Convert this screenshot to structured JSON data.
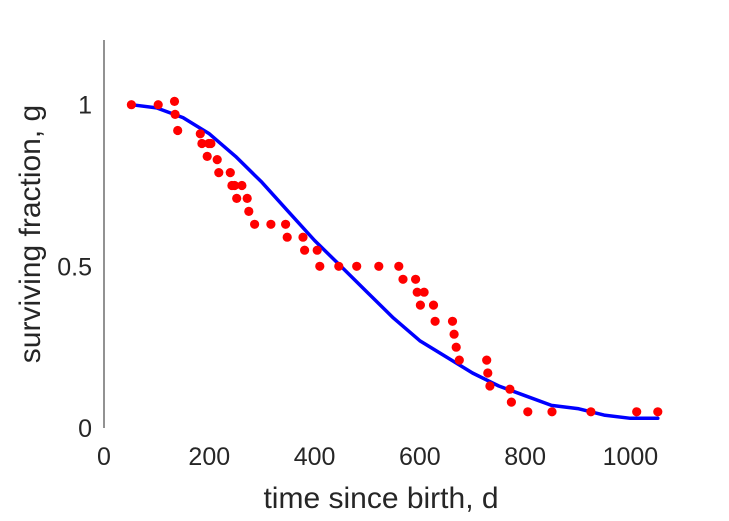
{
  "chart_data": {
    "type": "scatter",
    "xlabel": "time since birth, d",
    "ylabel": "surviving fraction, g",
    "xlim": [
      0,
      1060
    ],
    "ylim": [
      0,
      1.2
    ],
    "x_ticks": [
      0,
      200,
      400,
      600,
      800,
      1000
    ],
    "x_tick_labels": [
      "0",
      "200",
      "400",
      "600",
      "800",
      "1000"
    ],
    "y_ticks": [
      0,
      0.5,
      1
    ],
    "y_tick_labels": [
      "0",
      "0.5",
      "1"
    ],
    "grid": false,
    "legend": "none",
    "series": [
      {
        "kind": "scatter",
        "color": "#ff0000",
        "x": [
          52,
          103,
          134,
          135,
          140,
          183,
          186,
          196,
          199,
          203,
          215,
          218,
          240,
          243,
          248,
          252,
          262,
          272,
          275,
          286,
          317,
          345,
          348,
          378,
          381,
          405,
          410,
          446,
          480,
          522,
          560,
          568,
          592,
          595,
          601,
          608,
          626,
          629,
          662,
          665,
          669,
          675,
          727,
          729,
          733,
          771,
          774,
          805,
          851,
          925,
          1012,
          1052
        ],
        "y": [
          1.0,
          1.0,
          1.01,
          0.97,
          0.92,
          0.91,
          0.88,
          0.84,
          0.88,
          0.88,
          0.83,
          0.79,
          0.79,
          0.75,
          0.75,
          0.71,
          0.75,
          0.71,
          0.67,
          0.63,
          0.63,
          0.63,
          0.59,
          0.59,
          0.55,
          0.55,
          0.5,
          0.5,
          0.5,
          0.5,
          0.5,
          0.46,
          0.46,
          0.42,
          0.38,
          0.42,
          0.38,
          0.33,
          0.33,
          0.29,
          0.25,
          0.21,
          0.21,
          0.17,
          0.13,
          0.12,
          0.08,
          0.05,
          0.05,
          0.05,
          0.05,
          0.05
        ]
      },
      {
        "kind": "line",
        "color": "#0000ff",
        "x": [
          52,
          100,
          150,
          200,
          250,
          300,
          350,
          400,
          450,
          500,
          550,
          600,
          650,
          700,
          750,
          800,
          850,
          900,
          950,
          1000,
          1052
        ],
        "y": [
          1.0,
          0.99,
          0.96,
          0.91,
          0.84,
          0.76,
          0.67,
          0.58,
          0.5,
          0.42,
          0.34,
          0.27,
          0.22,
          0.17,
          0.13,
          0.1,
          0.07,
          0.06,
          0.04,
          0.03,
          0.03
        ]
      }
    ]
  }
}
